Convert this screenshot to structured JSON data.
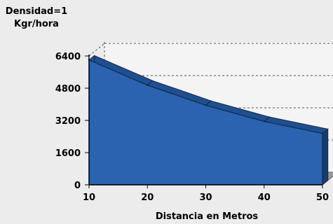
{
  "chart_data": {
    "type": "area",
    "ylabel_line1": "Densidad=1",
    "ylabel_line2": "Kgr/hora",
    "xlabel": "Distancia en Metros",
    "x": [
      10,
      20,
      30,
      40,
      50
    ],
    "values": [
      6200,
      4950,
      3950,
      3150,
      2550
    ],
    "xlim": [
      10,
      50
    ],
    "ylim": [
      0,
      6400
    ],
    "yticks": [
      0,
      1600,
      3200,
      4800,
      6400
    ],
    "xticks": [
      10,
      20,
      30,
      40,
      50
    ],
    "grid": "dashed",
    "three_d": true,
    "colors": {
      "area_front": "#2b63b0",
      "area_top": "#1f4f8f",
      "area_side": "#163d72",
      "floor": "#9a9a9a",
      "wall": "#f4f4f4",
      "background": "#ececec"
    }
  }
}
